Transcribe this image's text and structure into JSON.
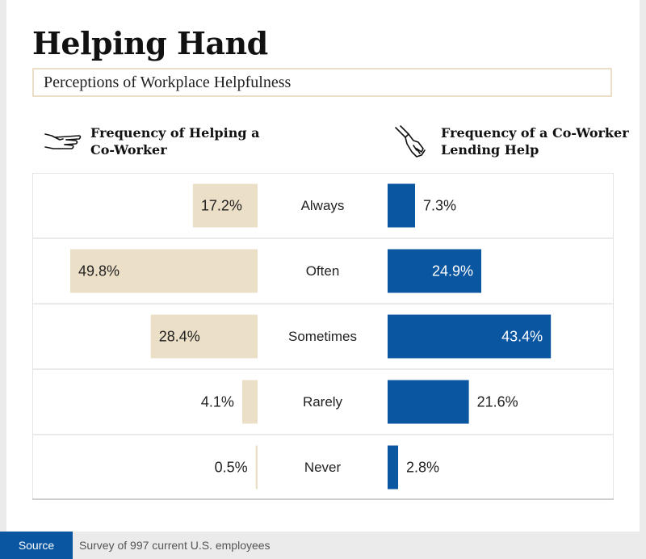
{
  "title": "Helping Hand",
  "subtitle": "Perceptions of Workplace Helpfulness",
  "left_header": "Frequency of Helping a Co-Worker",
  "right_header": "Frequency of a Co-Worker Lending Help",
  "colors": {
    "left_bar": "#ecdfc8",
    "right_bar": "#0b56a0",
    "grid": "#e3e3e3",
    "text": "#222222",
    "source_bg": "#0b56a0"
  },
  "footer": {
    "source_label": "Source",
    "source_text": "Survey of 997 current U.S. employees"
  },
  "chart_data": {
    "type": "bar",
    "orientation": "diverging-horizontal",
    "categories": [
      "Always",
      "Often",
      "Sometimes",
      "Rarely",
      "Never"
    ],
    "series": [
      {
        "name": "Frequency of Helping a Co-Worker",
        "values": [
          17.2,
          49.8,
          28.4,
          4.1,
          0.5
        ]
      },
      {
        "name": "Frequency of a Co-Worker Lending Help",
        "values": [
          7.3,
          24.9,
          43.4,
          21.6,
          2.8
        ]
      }
    ],
    "unit": "%",
    "xlim": [
      0,
      50
    ]
  }
}
